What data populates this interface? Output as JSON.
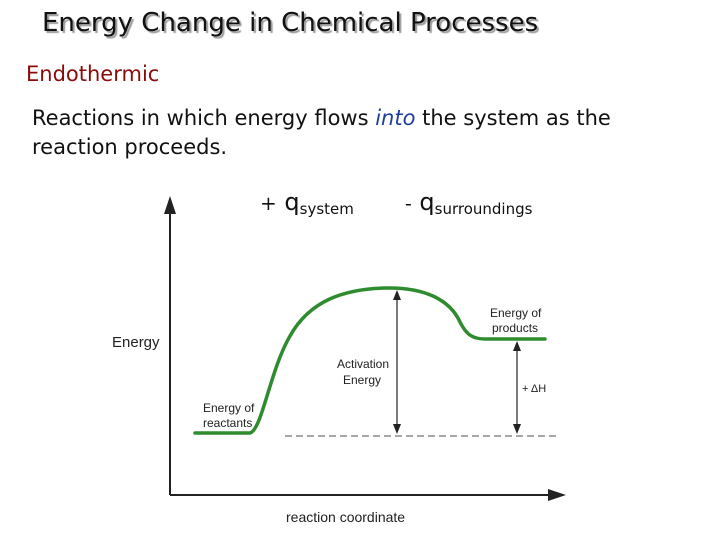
{
  "slide": {
    "title": "Energy Change in Chemical Processes",
    "subtitle": "Endothermic",
    "text_before": "Reactions in which energy flows ",
    "text_emphasis": "into",
    "text_after": " the system as the reaction proceeds.",
    "q_system": {
      "sign": "+",
      "symbol": "q",
      "subscript": "system"
    },
    "q_surroundings": {
      "sign": "-",
      "symbol": "q",
      "subscript": "surroundings"
    }
  },
  "diagram": {
    "y_axis_label": "Energy",
    "x_axis_label": "reaction coordinate",
    "reactants_label": [
      "Energy of",
      "reactants"
    ],
    "products_label": [
      "Energy of",
      "products"
    ],
    "activation_label": [
      "Activation",
      "Energy"
    ],
    "delta_h_label": "+ ΔH",
    "curve_color": "#2e8b2e"
  }
}
